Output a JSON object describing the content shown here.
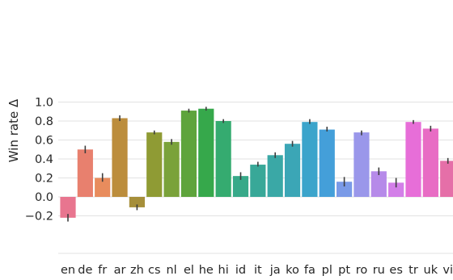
{
  "chart_data": {
    "type": "bar",
    "title": "",
    "xlabel": "",
    "ylabel": "Win rate Δ",
    "ylim": [
      -0.32,
      1.0
    ],
    "yticks": [
      -0.2,
      0.0,
      0.2,
      0.4,
      0.6,
      0.8,
      1.0
    ],
    "ytick_labels": [
      "−0.2",
      "0.0",
      "0.2",
      "0.4",
      "0.6",
      "0.8",
      "1.0"
    ],
    "grid": "horizontal",
    "categories": [
      "en",
      "de",
      "fr",
      "ar",
      "zh",
      "cs",
      "nl",
      "el",
      "he",
      "hi",
      "id",
      "it",
      "ja",
      "ko",
      "fa",
      "pl",
      "pt",
      "ro",
      "ru",
      "es",
      "tr",
      "uk",
      "vi"
    ],
    "values": [
      -0.22,
      0.5,
      0.2,
      0.83,
      -0.11,
      0.68,
      0.58,
      0.91,
      0.93,
      0.8,
      0.22,
      0.34,
      0.44,
      0.56,
      0.79,
      0.71,
      0.16,
      0.68,
      0.27,
      0.15,
      0.79,
      0.72,
      0.38
    ],
    "error_low": [
      -0.26,
      0.46,
      0.16,
      0.8,
      -0.14,
      0.66,
      0.55,
      0.89,
      0.91,
      0.78,
      0.18,
      0.32,
      0.41,
      0.53,
      0.77,
      0.69,
      0.11,
      0.65,
      0.23,
      0.1,
      0.77,
      0.69,
      0.35
    ],
    "error_high": [
      -0.18,
      0.54,
      0.25,
      0.86,
      -0.08,
      0.7,
      0.61,
      0.93,
      0.95,
      0.82,
      0.26,
      0.37,
      0.47,
      0.59,
      0.82,
      0.74,
      0.21,
      0.7,
      0.31,
      0.2,
      0.81,
      0.75,
      0.41
    ],
    "colors": [
      "#e8758f",
      "#e8806e",
      "#e88c5d",
      "#bc8d3c",
      "#a68f3a",
      "#8f9b34",
      "#7aa23a",
      "#5ea43c",
      "#36a84b",
      "#35ab70",
      "#37a989",
      "#38a898",
      "#3aa8a6",
      "#3ba6b6",
      "#3ba4cb",
      "#449fd9",
      "#7a9ae7",
      "#9a97ea",
      "#b68ae9",
      "#d37fe8",
      "#e76ed8",
      "#e86cc4",
      "#e56fa8"
    ]
  }
}
